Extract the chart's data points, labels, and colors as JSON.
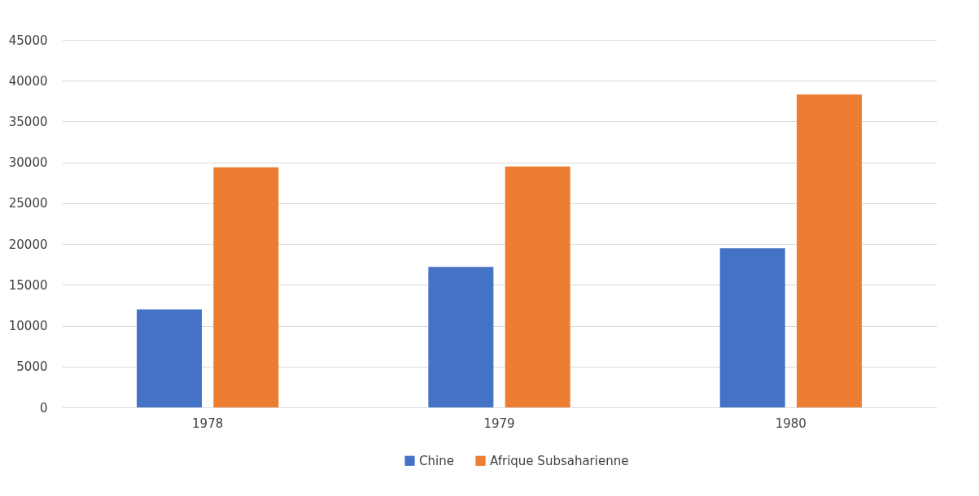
{
  "chart_data": {
    "type": "bar",
    "categories": [
      "1978",
      "1979",
      "1980"
    ],
    "series": [
      {
        "name": "Chine",
        "color": "#4472c4",
        "values": [
          12000,
          17200,
          19500
        ]
      },
      {
        "name": "Afrique Subsaharienne",
        "color": "#ed7d31",
        "values": [
          29400,
          29500,
          38300
        ]
      }
    ],
    "ylim": [
      0,
      45000
    ],
    "yticks": [
      0,
      5000,
      10000,
      15000,
      20000,
      25000,
      30000,
      35000,
      40000,
      45000
    ],
    "grid": "y",
    "legend": "bottom"
  }
}
